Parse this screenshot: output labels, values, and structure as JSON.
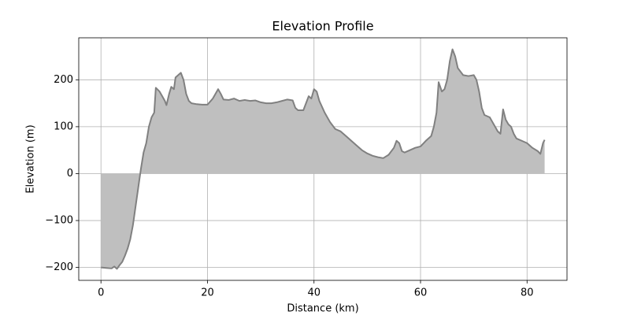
{
  "chart_data": {
    "type": "area",
    "title": "Elevation Profile",
    "x_label": "Distance (km)",
    "y_label": "Elevation (m)",
    "x": [
      0,
      1,
      2,
      2.5,
      3,
      3.5,
      4,
      4.5,
      5,
      5.5,
      6,
      6.5,
      7,
      7.5,
      8,
      8.5,
      9,
      9.5,
      10,
      10.3,
      11,
      11.5,
      12,
      12.3,
      12.8,
      13.2,
      13.7,
      14,
      14.5,
      15,
      15.5,
      16,
      16.5,
      17,
      18,
      19,
      20,
      21,
      22,
      22.5,
      23,
      24,
      25,
      26,
      27,
      28,
      29,
      30,
      31,
      32,
      33,
      34,
      35,
      36,
      36.5,
      37,
      38,
      39,
      39.5,
      40,
      40.5,
      41,
      42,
      43,
      44,
      45,
      46,
      47,
      48,
      49,
      50,
      51,
      52,
      53,
      54,
      55,
      55.5,
      56,
      56.5,
      57,
      58,
      59,
      60,
      61,
      62,
      62.5,
      63,
      63.4,
      64,
      64.5,
      65,
      65.5,
      66,
      66.5,
      67,
      68,
      69,
      70,
      70.5,
      71,
      71.5,
      72,
      73,
      73.5,
      74,
      74.5,
      75,
      75.5,
      76,
      76.5,
      77,
      77.5,
      78,
      79,
      80,
      81,
      82,
      82.5,
      83,
      83.3
    ],
    "values": [
      -200,
      -201,
      -202,
      -198,
      -203,
      -195,
      -188,
      -175,
      -160,
      -140,
      -110,
      -70,
      -30,
      10,
      45,
      65,
      100,
      120,
      130,
      183,
      175,
      165,
      155,
      146,
      170,
      185,
      180,
      205,
      210,
      215,
      200,
      170,
      155,
      150,
      148,
      147,
      147,
      160,
      180,
      170,
      158,
      157,
      160,
      155,
      157,
      155,
      156,
      152,
      150,
      150,
      152,
      155,
      158,
      156,
      140,
      135,
      135,
      165,
      160,
      180,
      175,
      155,
      130,
      110,
      95,
      90,
      80,
      70,
      60,
      50,
      43,
      38,
      35,
      33,
      40,
      55,
      70,
      65,
      48,
      45,
      50,
      55,
      58,
      70,
      80,
      100,
      130,
      195,
      175,
      180,
      200,
      240,
      265,
      250,
      225,
      210,
      208,
      210,
      200,
      175,
      140,
      125,
      120,
      110,
      100,
      90,
      85,
      137,
      115,
      105,
      100,
      85,
      75,
      70,
      65,
      55,
      48,
      42,
      65,
      72
    ],
    "color": "#bfbfbf",
    "line_color": "#808080",
    "xlim": [
      -4.17,
      87.5
    ],
    "ylim": [
      -227.5,
      289.5
    ],
    "xticks": [
      0,
      20,
      40,
      60,
      80
    ],
    "yticks": [
      {
        "value": -200,
        "label": "−200"
      },
      {
        "value": -100,
        "label": "−100"
      },
      0,
      100,
      200
    ],
    "grid": true
  }
}
